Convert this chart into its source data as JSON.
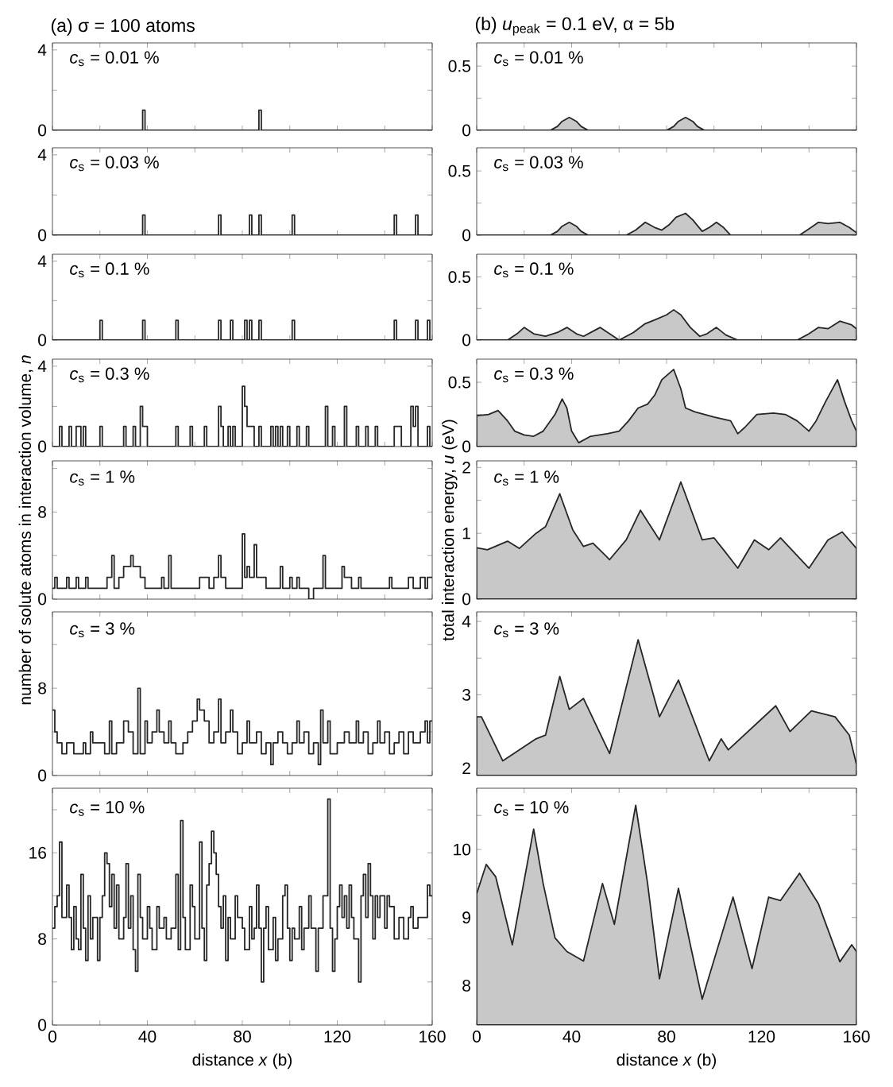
{
  "chart_data": [
    {
      "type": "step",
      "title": "*c*$_{s}$ = 0.01 %",
      "annotations": [
        "(a)  σ = 100 atoms"
      ],
      "tick_labels": "y",
      "color": "#262626",
      "xlim": [
        0,
        160
      ],
      "ylim": [
        0,
        4.35
      ],
      "xticks": [
        0,
        {
          "value": 20,
          "label": null
        },
        40,
        {
          "value": 60,
          "label": null
        },
        80,
        {
          "value": 100,
          "label": null
        },
        120,
        {
          "value": 140,
          "label": null
        },
        160
      ],
      "yticks": [
        0,
        {
          "value": 2,
          "label": null
        },
        4
      ],
      "x": [
        0,
        38,
        39,
        87,
        88,
        160
      ],
      "values": [
        0,
        1,
        0,
        1,
        0,
        0
      ]
    },
    {
      "type": "step",
      "title": "*c*$_{s}$ = 0.03 %",
      "tick_labels": "y",
      "color": "#262626",
      "xlim": [
        0,
        160
      ],
      "ylim": [
        0,
        4.35
      ],
      "xticks": [
        0,
        {
          "value": 20,
          "label": null
        },
        40,
        {
          "value": 60,
          "label": null
        },
        80,
        {
          "value": 100,
          "label": null
        },
        120,
        {
          "value": 140,
          "label": null
        },
        160
      ],
      "yticks": [
        0,
        {
          "value": 2,
          "label": null
        },
        4
      ],
      "x": [
        0,
        38,
        39,
        70,
        71,
        83,
        84,
        87,
        88,
        101,
        102,
        144,
        145,
        153,
        154,
        160
      ],
      "values": [
        0,
        1,
        0,
        1,
        0,
        1,
        0,
        1,
        0,
        1,
        0,
        1,
        0,
        1,
        0,
        0
      ]
    },
    {
      "type": "step",
      "title": "*c*$_{s}$ = 0.1 %",
      "tick_labels": "y",
      "color": "#262626",
      "xlim": [
        0,
        160
      ],
      "ylim": [
        0,
        4.35
      ],
      "xticks": [
        0,
        {
          "value": 20,
          "label": null
        },
        40,
        {
          "value": 60,
          "label": null
        },
        80,
        {
          "value": 100,
          "label": null
        },
        120,
        {
          "value": 140,
          "label": null
        },
        160
      ],
      "yticks": [
        0,
        {
          "value": 2,
          "label": null
        },
        4
      ],
      "x": [
        0,
        20,
        21,
        38,
        39,
        52,
        53,
        70,
        71,
        75,
        76,
        81,
        82,
        83,
        84,
        87,
        88,
        101,
        102,
        144,
        145,
        153,
        154,
        158,
        159,
        160
      ],
      "values": [
        0,
        1,
        0,
        1,
        0,
        1,
        0,
        1,
        0,
        1,
        0,
        1,
        0,
        1,
        0,
        1,
        0,
        1,
        0,
        1,
        0,
        1,
        0,
        1,
        0,
        0
      ]
    },
    {
      "type": "step",
      "title": "*c*$_{s}$ = 0.3 %",
      "tick_labels": "y",
      "color": "#262626",
      "xlim": [
        0,
        160
      ],
      "ylim": [
        0,
        4.35
      ],
      "xticks": [
        0,
        {
          "value": 20,
          "label": null
        },
        40,
        {
          "value": 60,
          "label": null
        },
        80,
        {
          "value": 100,
          "label": null
        },
        120,
        {
          "value": 140,
          "label": null
        },
        160
      ],
      "yticks": [
        0,
        {
          "value": 2,
          "label": null
        },
        4
      ],
      "x": [
        0,
        3,
        4,
        7,
        8,
        10,
        12,
        13,
        14,
        20,
        21,
        30,
        31,
        34,
        35,
        37,
        38,
        40,
        52,
        53,
        58,
        59,
        64,
        65,
        70,
        71,
        72,
        74,
        75,
        76,
        77,
        80,
        81,
        82,
        85,
        87,
        88,
        92,
        93,
        94,
        95,
        96,
        97,
        99,
        100,
        103,
        104,
        107,
        108,
        115,
        116,
        118,
        119,
        123,
        124,
        128,
        129,
        132,
        133,
        136,
        137,
        144,
        147,
        151,
        152,
        153,
        154,
        158,
        159,
        160
      ],
      "values": [
        0,
        1,
        0,
        1,
        0,
        1,
        0,
        1,
        0,
        1,
        0,
        1,
        0,
        1,
        0,
        2,
        1,
        0,
        1,
        0,
        1,
        0,
        1,
        0,
        2,
        1,
        0,
        1,
        0,
        1,
        0,
        3,
        2,
        1,
        0,
        1,
        0,
        1,
        0,
        1,
        0,
        1,
        0,
        1,
        0,
        1,
        0,
        1,
        0,
        2,
        0,
        1,
        0,
        2,
        0,
        1,
        0,
        1,
        0,
        1,
        0,
        1,
        0,
        2,
        1,
        2,
        0,
        1,
        0,
        0
      ]
    },
    {
      "type": "step",
      "title": "*c*$_{s}$ = 1 %",
      "ylabel": "number of solute atoms in interaction volume, *n*",
      "tick_labels": "y",
      "color": "#262626",
      "xlim": [
        0,
        160
      ],
      "ylim": [
        0,
        12.7
      ],
      "xticks": [
        0,
        {
          "value": 20,
          "label": null
        },
        40,
        {
          "value": 60,
          "label": null
        },
        80,
        {
          "value": 100,
          "label": null
        },
        120,
        {
          "value": 140,
          "label": null
        },
        160
      ],
      "yticks": [
        0,
        {
          "value": 4,
          "label": null
        },
        8,
        {
          "value": 12,
          "label": null
        }
      ],
      "x": [
        0,
        1,
        2,
        6,
        7,
        10,
        11,
        14,
        15,
        23,
        25,
        26,
        28,
        30,
        33,
        34,
        37,
        39,
        46,
        47,
        49,
        50,
        62,
        66,
        68,
        70,
        71,
        73,
        80,
        81,
        82,
        83,
        85,
        86,
        90,
        96,
        97,
        100,
        101,
        103,
        104,
        108,
        110,
        114,
        115,
        122,
        123,
        126,
        129,
        130,
        142,
        143,
        150,
        152,
        155,
        157,
        158,
        160
      ],
      "values": [
        1,
        2,
        1,
        2,
        1,
        2,
        1,
        2,
        1,
        2,
        4,
        1,
        2,
        3,
        4,
        3,
        2,
        1,
        2,
        1,
        4,
        1,
        2,
        1,
        2,
        4,
        2,
        1,
        6,
        2,
        3,
        2,
        5,
        2,
        1,
        3,
        1,
        2,
        1,
        2,
        1,
        0,
        1,
        4,
        1,
        3,
        2,
        1,
        2,
        1,
        2,
        1,
        2,
        1,
        2,
        1,
        2,
        2
      ]
    },
    {
      "type": "step",
      "title": "*c*$_{s}$ = 3 %",
      "tick_labels": "y",
      "color": "#262626",
      "xlim": [
        0,
        160
      ],
      "ylim": [
        0,
        15
      ],
      "xticks": [
        0,
        {
          "value": 20,
          "label": null
        },
        40,
        {
          "value": 60,
          "label": null
        },
        80,
        {
          "value": 100,
          "label": null
        },
        120,
        {
          "value": 140,
          "label": null
        },
        160
      ],
      "yticks": [
        0,
        {
          "value": 4,
          "label": null
        },
        8,
        {
          "value": 12,
          "label": null
        }
      ],
      "x": [
        0,
        1,
        2,
        4,
        6,
        9,
        13,
        14,
        16,
        17,
        20,
        22,
        24,
        25,
        27,
        30,
        32,
        34,
        36,
        37,
        39,
        40,
        42,
        44,
        45,
        47,
        49,
        50,
        52,
        55,
        57,
        59,
        61,
        62,
        64,
        66,
        68,
        70,
        71,
        73,
        75,
        76,
        78,
        80,
        82,
        83,
        86,
        88,
        90,
        92,
        93,
        95,
        97,
        99,
        101,
        103,
        104,
        106,
        108,
        110,
        112,
        113,
        114,
        116,
        117,
        120,
        123,
        125,
        128,
        129,
        131,
        133,
        135,
        137,
        138,
        140,
        142,
        144,
        146,
        148,
        150,
        152,
        155,
        157,
        158,
        159,
        160
      ],
      "values": [
        6,
        4,
        3,
        2,
        3,
        2,
        3,
        2,
        4,
        3,
        3,
        2,
        5,
        2,
        3,
        5,
        4,
        2,
        8,
        2,
        5,
        3,
        4,
        6,
        4,
        3,
        5,
        3,
        2,
        3,
        4,
        5,
        7,
        6,
        5,
        3,
        4,
        7,
        3,
        4,
        6,
        4,
        2,
        3,
        5,
        3,
        4,
        2,
        3,
        1,
        3,
        4,
        3,
        2,
        3,
        5,
        3,
        4,
        2,
        3,
        1,
        6,
        3,
        5,
        2,
        3,
        4,
        3,
        5,
        3,
        4,
        2,
        3,
        5,
        3,
        4,
        2,
        3,
        4,
        2,
        4,
        3,
        4,
        5,
        3,
        5,
        5
      ]
    },
    {
      "type": "step",
      "title": "*c*$_{s}$ = 10 %",
      "xlabel": "distance *x* (b)",
      "color": "#262626",
      "xlim": [
        0,
        160
      ],
      "ylim": [
        0,
        22
      ],
      "xticks": [
        0,
        {
          "value": 20,
          "label": null
        },
        40,
        {
          "value": 60,
          "label": null
        },
        80,
        {
          "value": 100,
          "label": null
        },
        120,
        {
          "value": 140,
          "label": null
        },
        160
      ],
      "yticks": [
        0,
        {
          "value": 4,
          "label": null
        },
        8,
        {
          "value": 12,
          "label": null
        },
        16,
        {
          "value": 20,
          "label": null
        }
      ],
      "x": [
        0,
        1,
        2,
        3,
        4,
        6,
        7,
        8,
        9,
        10,
        11,
        12,
        13,
        14,
        15,
        16,
        17,
        19,
        20,
        21,
        22,
        23,
        24,
        25,
        26,
        27,
        28,
        30,
        31,
        32,
        33,
        34,
        35,
        36,
        37,
        38,
        40,
        41,
        42,
        44,
        45,
        47,
        48,
        50,
        52,
        53,
        54,
        55,
        56,
        58,
        59,
        60,
        62,
        63,
        64,
        65,
        66,
        67,
        68,
        69,
        70,
        71,
        72,
        73,
        74,
        75,
        77,
        78,
        80,
        81,
        83,
        84,
        85,
        86,
        87,
        88,
        89,
        90,
        91,
        93,
        94,
        95,
        97,
        98,
        99,
        100,
        101,
        102,
        104,
        105,
        106,
        108,
        109,
        111,
        112,
        114,
        116,
        117,
        118,
        119,
        120,
        121,
        122,
        123,
        124,
        125,
        126,
        127,
        129,
        130,
        131,
        132,
        133,
        134,
        135,
        136,
        137,
        138,
        140,
        141,
        142,
        144,
        146,
        148,
        150,
        151,
        152,
        154,
        156,
        158,
        159,
        160
      ],
      "values": [
        9,
        11,
        12,
        17,
        10,
        13,
        10,
        7,
        11,
        8,
        7,
        14,
        9,
        6,
        12,
        8,
        10,
        6,
        10,
        12,
        16,
        15,
        11,
        14,
        9,
        13,
        8,
        10,
        15,
        9,
        12,
        7,
        5,
        14,
        10,
        8,
        11,
        9,
        7,
        11,
        9,
        10,
        8,
        9,
        14,
        7,
        19,
        10,
        7,
        13,
        11,
        8,
        17,
        9,
        6,
        13,
        15,
        18,
        16,
        14,
        11,
        9,
        12,
        6,
        10,
        8,
        12,
        10,
        9,
        7,
        11,
        8,
        9,
        13,
        9,
        4,
        9,
        11,
        7,
        10,
        6,
        8,
        12,
        13,
        9,
        6,
        9,
        8,
        11,
        7,
        9,
        12,
        9,
        5,
        9,
        12,
        21,
        9,
        5,
        8,
        11,
        13,
        10,
        12,
        9,
        13,
        10,
        8,
        4,
        12,
        14,
        10,
        15,
        12,
        8,
        12,
        10,
        12,
        9,
        12,
        11,
        8,
        10,
        8,
        10,
        11,
        9,
        10,
        10,
        13,
        12,
        12
      ]
    },
    {
      "type": "area",
      "title": "*c*$_{s}$ = 0.01 %",
      "annotations": [
        "(b)  *u*$_{peak}$ = 0.1 eV, α = 5b"
      ],
      "tick_labels": "y",
      "color": "#c8c8c8",
      "xlim": [
        0,
        160
      ],
      "ylim": [
        0,
        0.68
      ],
      "xticks": [
        0,
        {
          "value": 20,
          "label": null
        },
        40,
        {
          "value": 60,
          "label": null
        },
        80,
        {
          "value": 100,
          "label": null
        },
        120,
        {
          "value": 140,
          "label": null
        },
        160
      ],
      "yticks": [
        0,
        {
          "value": 0.25,
          "label": null
        },
        0.5
      ],
      "x": [
        0,
        31,
        34,
        36,
        39,
        42,
        44,
        47,
        80,
        83,
        85,
        88,
        91,
        93,
        96,
        160
      ],
      "values": [
        0,
        0,
        0.03,
        0.07,
        0.1,
        0.07,
        0.03,
        0,
        0,
        0.03,
        0.07,
        0.1,
        0.07,
        0.03,
        0,
        0
      ]
    },
    {
      "type": "area",
      "title": "*c*$_{s}$ = 0.03 %",
      "tick_labels": "y",
      "color": "#c8c8c8",
      "xlim": [
        0,
        160
      ],
      "ylim": [
        0,
        0.68
      ],
      "xticks": [
        0,
        {
          "value": 20,
          "label": null
        },
        40,
        {
          "value": 60,
          "label": null
        },
        80,
        {
          "value": 100,
          "label": null
        },
        120,
        {
          "value": 140,
          "label": null
        },
        160
      ],
      "yticks": [
        0,
        {
          "value": 0.25,
          "label": null
        },
        0.5
      ],
      "x": [
        0,
        31,
        34,
        36,
        39,
        42,
        44,
        47,
        63,
        67,
        71,
        75,
        78,
        81,
        84,
        88,
        91,
        95,
        98,
        101,
        104,
        107,
        136,
        140,
        144,
        148,
        153,
        157,
        160
      ],
      "values": [
        0,
        0,
        0.03,
        0.07,
        0.1,
        0.07,
        0.03,
        0,
        0,
        0.04,
        0.1,
        0.06,
        0.04,
        0.08,
        0.14,
        0.17,
        0.12,
        0.03,
        0.06,
        0.1,
        0.06,
        0,
        0,
        0.05,
        0.1,
        0.09,
        0.1,
        0.06,
        0.02
      ]
    },
    {
      "type": "area",
      "title": "*c*$_{s}$ = 0.1 %",
      "tick_labels": "y",
      "color": "#c8c8c8",
      "xlim": [
        0,
        160
      ],
      "ylim": [
        0,
        0.68
      ],
      "xticks": [
        0,
        {
          "value": 20,
          "label": null
        },
        40,
        {
          "value": 60,
          "label": null
        },
        80,
        {
          "value": 100,
          "label": null
        },
        120,
        {
          "value": 140,
          "label": null
        },
        160
      ],
      "yticks": [
        0,
        {
          "value": 0.25,
          "label": null
        },
        0.5
      ],
      "x": [
        0,
        13,
        17,
        20,
        24,
        29,
        34,
        38,
        42,
        45,
        49,
        52,
        56,
        60,
        66,
        71,
        75,
        80,
        83,
        86,
        90,
        94,
        97,
        101,
        105,
        110,
        135,
        140,
        144,
        148,
        153,
        158,
        160
      ],
      "values": [
        0,
        0,
        0.05,
        0.1,
        0.05,
        0.03,
        0.06,
        0.1,
        0.05,
        0.03,
        0.07,
        0.1,
        0.05,
        0,
        0.06,
        0.13,
        0.16,
        0.2,
        0.24,
        0.2,
        0.1,
        0.03,
        0.05,
        0.1,
        0.04,
        0,
        0,
        0.05,
        0.1,
        0.09,
        0.15,
        0.12,
        0.09
      ]
    },
    {
      "type": "area",
      "title": "*c*$_{s}$ = 0.3 %",
      "tick_labels": "y",
      "color": "#c8c8c8",
      "xlim": [
        0,
        160
      ],
      "ylim": [
        0,
        0.68
      ],
      "xticks": [
        0,
        {
          "value": 20,
          "label": null
        },
        40,
        {
          "value": 60,
          "label": null
        },
        80,
        {
          "value": 100,
          "label": null
        },
        120,
        {
          "value": 140,
          "label": null
        },
        160
      ],
      "yticks": [
        0,
        {
          "value": 0.25,
          "label": null
        },
        0.5
      ],
      "x": [
        0,
        5,
        9,
        13,
        16,
        20,
        24,
        28,
        33,
        36,
        38,
        40,
        43,
        48,
        55,
        60,
        64,
        68,
        72,
        75,
        78,
        83,
        86,
        88,
        92,
        100,
        107,
        110,
        113,
        118,
        125,
        130,
        135,
        140,
        143,
        147,
        152,
        155,
        158,
        160
      ],
      "values": [
        0.24,
        0.25,
        0.28,
        0.2,
        0.12,
        0.09,
        0.08,
        0.12,
        0.25,
        0.37,
        0.3,
        0.12,
        0.03,
        0.08,
        0.1,
        0.12,
        0.2,
        0.3,
        0.33,
        0.4,
        0.52,
        0.6,
        0.45,
        0.3,
        0.27,
        0.23,
        0.2,
        0.1,
        0.15,
        0.25,
        0.26,
        0.25,
        0.2,
        0.12,
        0.2,
        0.35,
        0.52,
        0.35,
        0.2,
        0.12
      ]
    },
    {
      "type": "area",
      "title": "*c*$_{s}$ = 1 %",
      "ylabel": "total interaction energy, *u* (eV)",
      "tick_labels": "y",
      "color": "#c8c8c8",
      "xlim": [
        0,
        160
      ],
      "ylim": [
        0,
        2.1
      ],
      "xticks": [
        0,
        {
          "value": 20,
          "label": null
        },
        40,
        {
          "value": 60,
          "label": null
        },
        80,
        {
          "value": 100,
          "label": null
        },
        120,
        {
          "value": 140,
          "label": null
        },
        160
      ],
      "yticks": [
        0,
        {
          "value": 0.5,
          "label": null
        },
        1,
        {
          "value": 1.5,
          "label": null
        },
        2
      ],
      "x": [
        0,
        4.5,
        13,
        18,
        25,
        29,
        35,
        40.5,
        45,
        49,
        56,
        63,
        69,
        77,
        86,
        95,
        100,
        104,
        110,
        117,
        123,
        128,
        140,
        148,
        154,
        160
      ],
      "values": [
        0.78,
        0.75,
        0.88,
        0.77,
        1.0,
        1.1,
        1.6,
        1.05,
        0.8,
        0.85,
        0.6,
        0.9,
        1.35,
        0.9,
        1.78,
        0.9,
        0.93,
        0.75,
        0.47,
        0.9,
        0.75,
        0.93,
        0.47,
        0.9,
        1.02,
        0.77
      ]
    },
    {
      "type": "area",
      "title": "*c*$_{s}$ = 3 %",
      "tick_labels": "y",
      "color": "#c8c8c8",
      "xlim": [
        0,
        160
      ],
      "ylim": [
        1.9,
        4.13
      ],
      "xticks": [
        0,
        {
          "value": 20,
          "label": null
        },
        40,
        {
          "value": 60,
          "label": null
        },
        80,
        {
          "value": 100,
          "label": null
        },
        120,
        {
          "value": 140,
          "label": null
        },
        160
      ],
      "yticks": [
        2,
        {
          "value": 2.5,
          "label": null
        },
        3,
        {
          "value": 3.5,
          "label": null
        },
        4
      ],
      "x": [
        0,
        2,
        11,
        25,
        29,
        35,
        39,
        45,
        56,
        68,
        77,
        85,
        98,
        103,
        106,
        126,
        132,
        141,
        151,
        157,
        160
      ],
      "values": [
        2.7,
        2.7,
        2.1,
        2.4,
        2.45,
        3.25,
        2.8,
        2.95,
        2.2,
        3.75,
        2.7,
        3.2,
        2.1,
        2.4,
        2.25,
        2.85,
        2.5,
        2.78,
        2.7,
        2.45,
        2.05
      ]
    },
    {
      "type": "area",
      "title": "*c*$_{s}$ = 10 %",
      "xlabel": "distance *x* (b)",
      "color": "#c8c8c8",
      "xlim": [
        0,
        160
      ],
      "ylim": [
        7.42,
        10.9
      ],
      "xticks": [
        0,
        {
          "value": 20,
          "label": null
        },
        40,
        {
          "value": 60,
          "label": null
        },
        80,
        {
          "value": 100,
          "label": null
        },
        120,
        {
          "value": 140,
          "label": null
        },
        160
      ],
      "yticks": [
        8,
        {
          "value": 8.5,
          "label": null
        },
        9,
        {
          "value": 9.5,
          "label": null
        },
        10,
        {
          "value": 10.5,
          "label": null
        }
      ],
      "x": [
        0,
        4,
        8,
        15,
        24,
        28,
        33,
        38,
        45,
        53,
        58,
        67,
        72,
        77,
        85,
        90,
        95,
        108,
        116,
        123,
        128,
        136,
        144,
        153,
        158,
        160
      ],
      "values": [
        9.35,
        9.78,
        9.6,
        8.6,
        10.3,
        9.5,
        8.7,
        8.5,
        8.36,
        9.5,
        8.9,
        10.65,
        9.5,
        8.1,
        9.43,
        8.6,
        7.8,
        9.3,
        8.25,
        9.3,
        9.25,
        9.65,
        9.2,
        8.35,
        8.6,
        8.5
      ]
    }
  ]
}
